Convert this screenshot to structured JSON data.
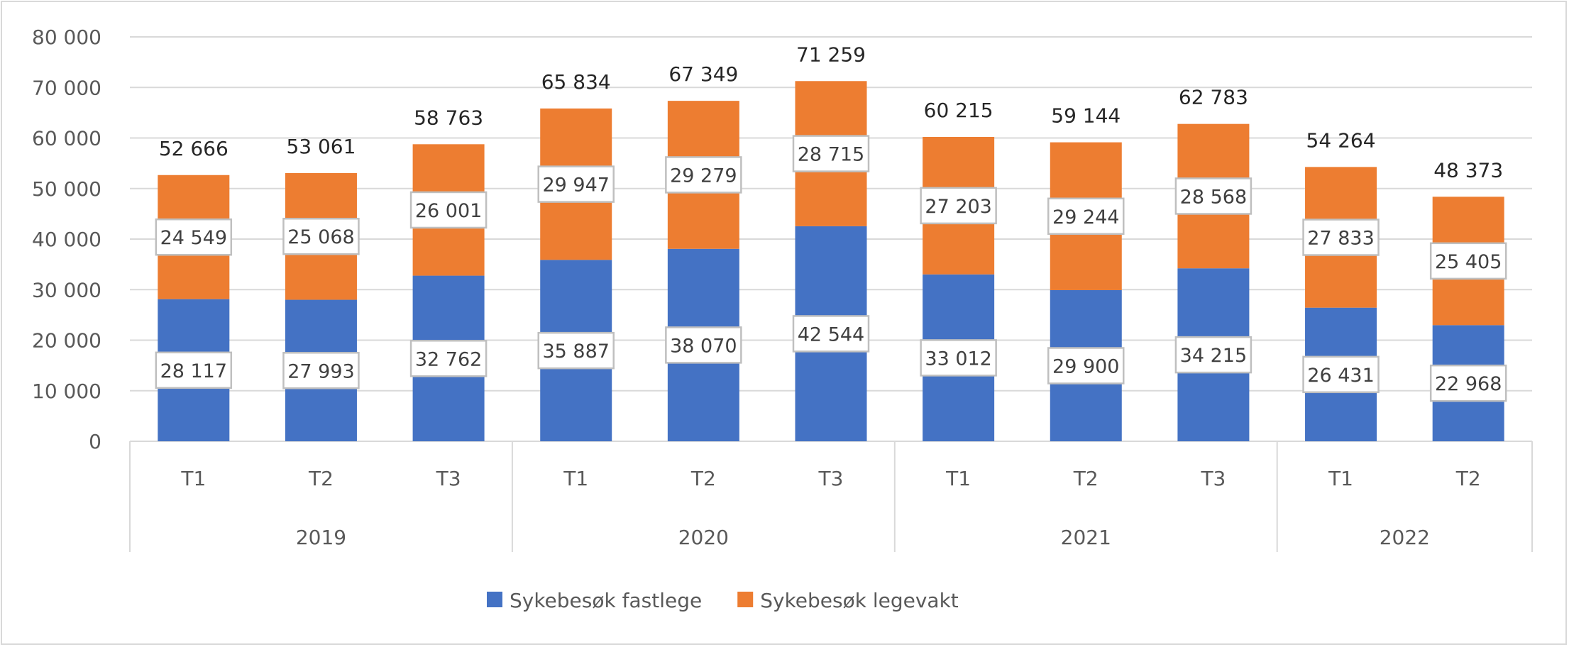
{
  "chart_data": {
    "type": "bar",
    "stacked": true,
    "categories": [
      "T1",
      "T2",
      "T3",
      "T1",
      "T2",
      "T3",
      "T1",
      "T2",
      "T3",
      "T1",
      "T2"
    ],
    "groups": [
      {
        "label": "2019",
        "count": 3
      },
      {
        "label": "2020",
        "count": 3
      },
      {
        "label": "2021",
        "count": 3
      },
      {
        "label": "2022",
        "count": 2
      }
    ],
    "series": [
      {
        "name": "Sykebesøk fastlege",
        "color": "#4472c4",
        "values": [
          28117,
          27993,
          32762,
          35887,
          38070,
          42544,
          33012,
          29900,
          34215,
          26431,
          22968
        ],
        "labels": [
          "28 117",
          "27 993",
          "32 762",
          "35 887",
          "38 070",
          "42 544",
          "33 012",
          "29 900",
          "34 215",
          "26 431",
          "22 968"
        ]
      },
      {
        "name": "Sykebesøk legevakt",
        "color": "#ed7d31",
        "values": [
          24549,
          25068,
          26001,
          29947,
          29279,
          28715,
          27203,
          29244,
          28568,
          27833,
          25405
        ],
        "labels": [
          "24 549",
          "25 068",
          "26 001",
          "29 947",
          "29 279",
          "28 715",
          "27 203",
          "29 244",
          "28 568",
          "27 833",
          "25 405"
        ]
      }
    ],
    "totals": [
      "52 666",
      "53 061",
      "58 763",
      "65 834",
      "67 349",
      "71 259",
      "60 215",
      "59 144",
      "62 783",
      "54 264",
      "48 373"
    ],
    "ylim": [
      0,
      80000
    ],
    "yticks": [
      "0",
      "10 000",
      "20 000",
      "30 000",
      "40 000",
      "50 000",
      "60 000",
      "70 000",
      "80 000"
    ],
    "grid": true,
    "legend": "bottom"
  }
}
